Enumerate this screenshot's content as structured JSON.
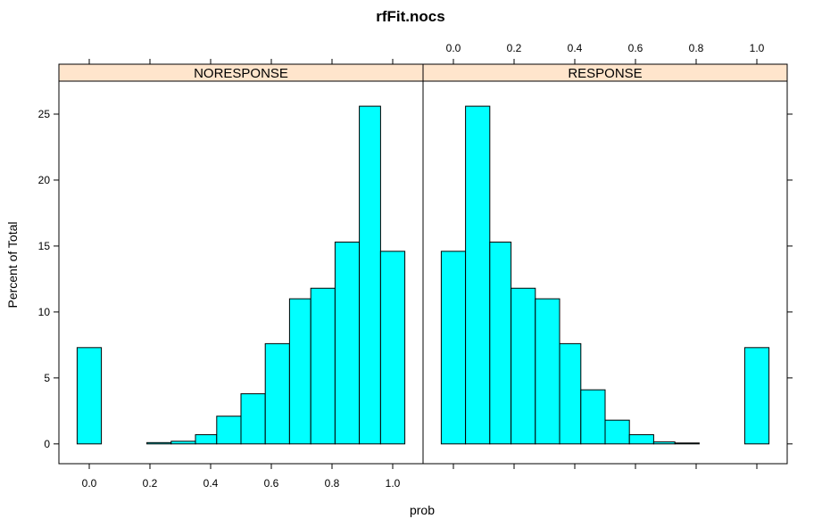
{
  "chart_data": {
    "type": "bar",
    "title": "rfFit.nocs",
    "xlabel": "prob",
    "ylabel": "Percent of Total",
    "xlim": [
      -0.1,
      1.1
    ],
    "ylim": [
      -1.5,
      27.5
    ],
    "x_ticks": [
      "0.0",
      "0.2",
      "0.4",
      "0.6",
      "0.8",
      "1.0"
    ],
    "y_ticks": [
      "0",
      "5",
      "10",
      "15",
      "20",
      "25"
    ],
    "bin_edges": [
      -0.04,
      0.04,
      0.12,
      0.19,
      0.27,
      0.35,
      0.42,
      0.5,
      0.58,
      0.66,
      0.73,
      0.81,
      0.89,
      0.96,
      1.04
    ],
    "panels": [
      {
        "name": "NORESPONSE",
        "values": [
          7.3,
          0.0,
          0.0,
          0.1,
          0.2,
          0.7,
          2.1,
          3.8,
          7.6,
          11.0,
          11.8,
          15.3,
          25.6,
          14.6
        ]
      },
      {
        "name": "RESPONSE",
        "values": [
          14.6,
          25.6,
          15.3,
          11.8,
          11.0,
          7.6,
          4.1,
          1.8,
          0.7,
          0.15,
          0.07,
          0.0,
          0.0,
          7.3
        ]
      }
    ],
    "bar_color": "#00FFFF",
    "strip_color": "#FFE5CC"
  }
}
